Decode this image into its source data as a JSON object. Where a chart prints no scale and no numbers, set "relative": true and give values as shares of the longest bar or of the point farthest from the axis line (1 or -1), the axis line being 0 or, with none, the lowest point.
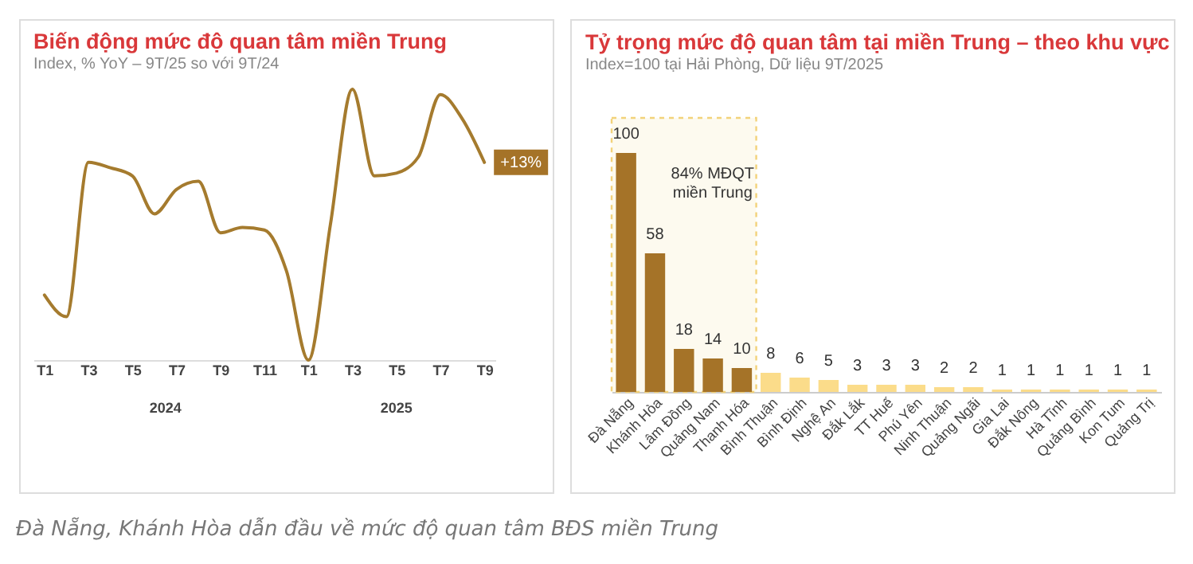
{
  "chart_data": [
    {
      "type": "line",
      "title": "Biến động mức độ quan tâm miền Trung",
      "subtitle": "Index, % YoY – 9T/25 so với 9T/24",
      "categories": [
        "T1",
        null,
        "T3",
        null,
        "T5",
        null,
        "T7",
        null,
        "T9",
        null,
        "T11",
        null,
        "T1",
        null,
        "T3",
        null,
        "T5",
        null,
        "T7",
        null,
        "T9"
      ],
      "relative": true,
      "color": "#a57b2e",
      "line_style": "solid",
      "grid": false,
      "values": [
        0.24,
        0.16,
        0.73,
        0.71,
        0.68,
        0.54,
        0.63,
        0.66,
        0.47,
        0.49,
        0.48,
        0.33,
        0,
        0.5,
        1,
        0.68,
        0.69,
        0.75,
        0.98,
        0.89,
        0.73
      ],
      "annotations": [
        "+13%",
        "2024",
        "2025"
      ]
    },
    {
      "type": "bar",
      "title": "Tỷ trọng mức độ quan tâm tại miền Trung – theo khu vực",
      "subtitle": "Index=100 tại Hải Phòng, Dữ liệu 9T/2025",
      "categories": [
        "Đà Nẵng",
        "Khánh Hòa",
        "Lâm Đồng",
        "Quảng Nam",
        "Thanh Hóa",
        "Bình Thuận",
        "Bình Định",
        "Nghệ An",
        "Đắk Lắk",
        "TT Huế",
        "Phú Yên",
        "Ninh Thuận",
        "Quảng Ngãi",
        "Gia Lai",
        "Đắk Nông",
        "Hà Tĩnh",
        "Quảng Bình",
        "Kon Tum",
        "Quảng Trị"
      ],
      "values": [
        100,
        58,
        18,
        14,
        10,
        8,
        6,
        5,
        3,
        3,
        3,
        2,
        2,
        1,
        1,
        1,
        1,
        1,
        1
      ],
      "colors": [
        "#a57328",
        "#a57328",
        "#a57328",
        "#a57328",
        "#a57328",
        "#fbdc8a",
        "#fbdc8a",
        "#fbdc8a",
        "#fbdc8a",
        "#fbdc8a",
        "#fbdc8a",
        "#fbdc8a",
        "#fbdc8a",
        "#fbdc8a",
        "#fbdc8a",
        "#fbdc8a",
        "#fbdc8a",
        "#fbdc8a",
        "#fbdc8a"
      ],
      "data_labels": true,
      "grid": false,
      "bands": [
        {
          "axis": "x",
          "from": "Đà Nẵng",
          "to": "Thanh Hóa",
          "label": "84% MĐQT\nmiền Trung",
          "color": "#f2d27a"
        }
      ],
      "annotations": [
        "Đà Nẵng, Khánh Hòa dẫn đầu về mức độ quan tâm BĐS miền Trung"
      ]
    }
  ]
}
